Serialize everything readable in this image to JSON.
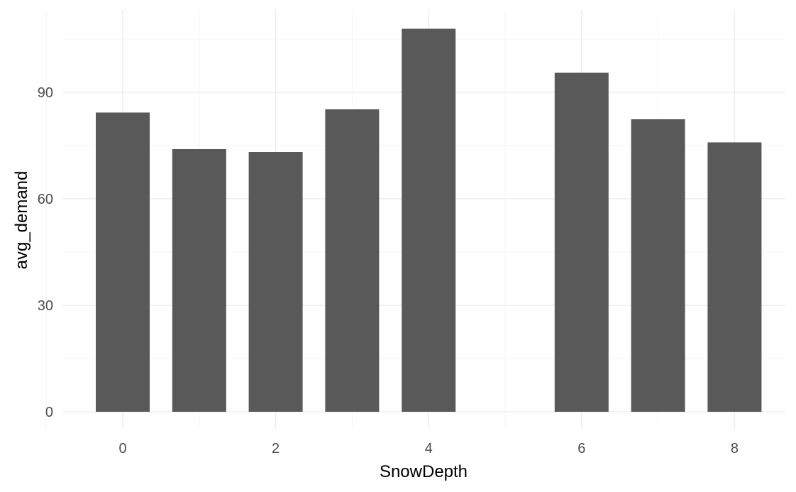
{
  "chart_data": {
    "type": "bar",
    "title": "",
    "xlabel": "SnowDepth",
    "ylabel": "avg_demand",
    "x": [
      0,
      1,
      2,
      3,
      4,
      6,
      7,
      8
    ],
    "values": [
      84.3,
      74.0,
      73.2,
      85.2,
      107.9,
      95.5,
      82.4,
      75.9
    ],
    "xlim": [
      -1,
      9
    ],
    "ylim": [
      0,
      113
    ],
    "x_ticks": [
      0,
      2,
      4,
      6,
      8
    ],
    "y_ticks": [
      0,
      30,
      60,
      90
    ],
    "grid": true,
    "legend": "none",
    "colors": {
      "bar": "#595959",
      "grid_major": "#ebebeb",
      "grid_minor": "#f3f3f3",
      "tick_text": "#4d4d4d",
      "axis_title": "#000000"
    }
  }
}
